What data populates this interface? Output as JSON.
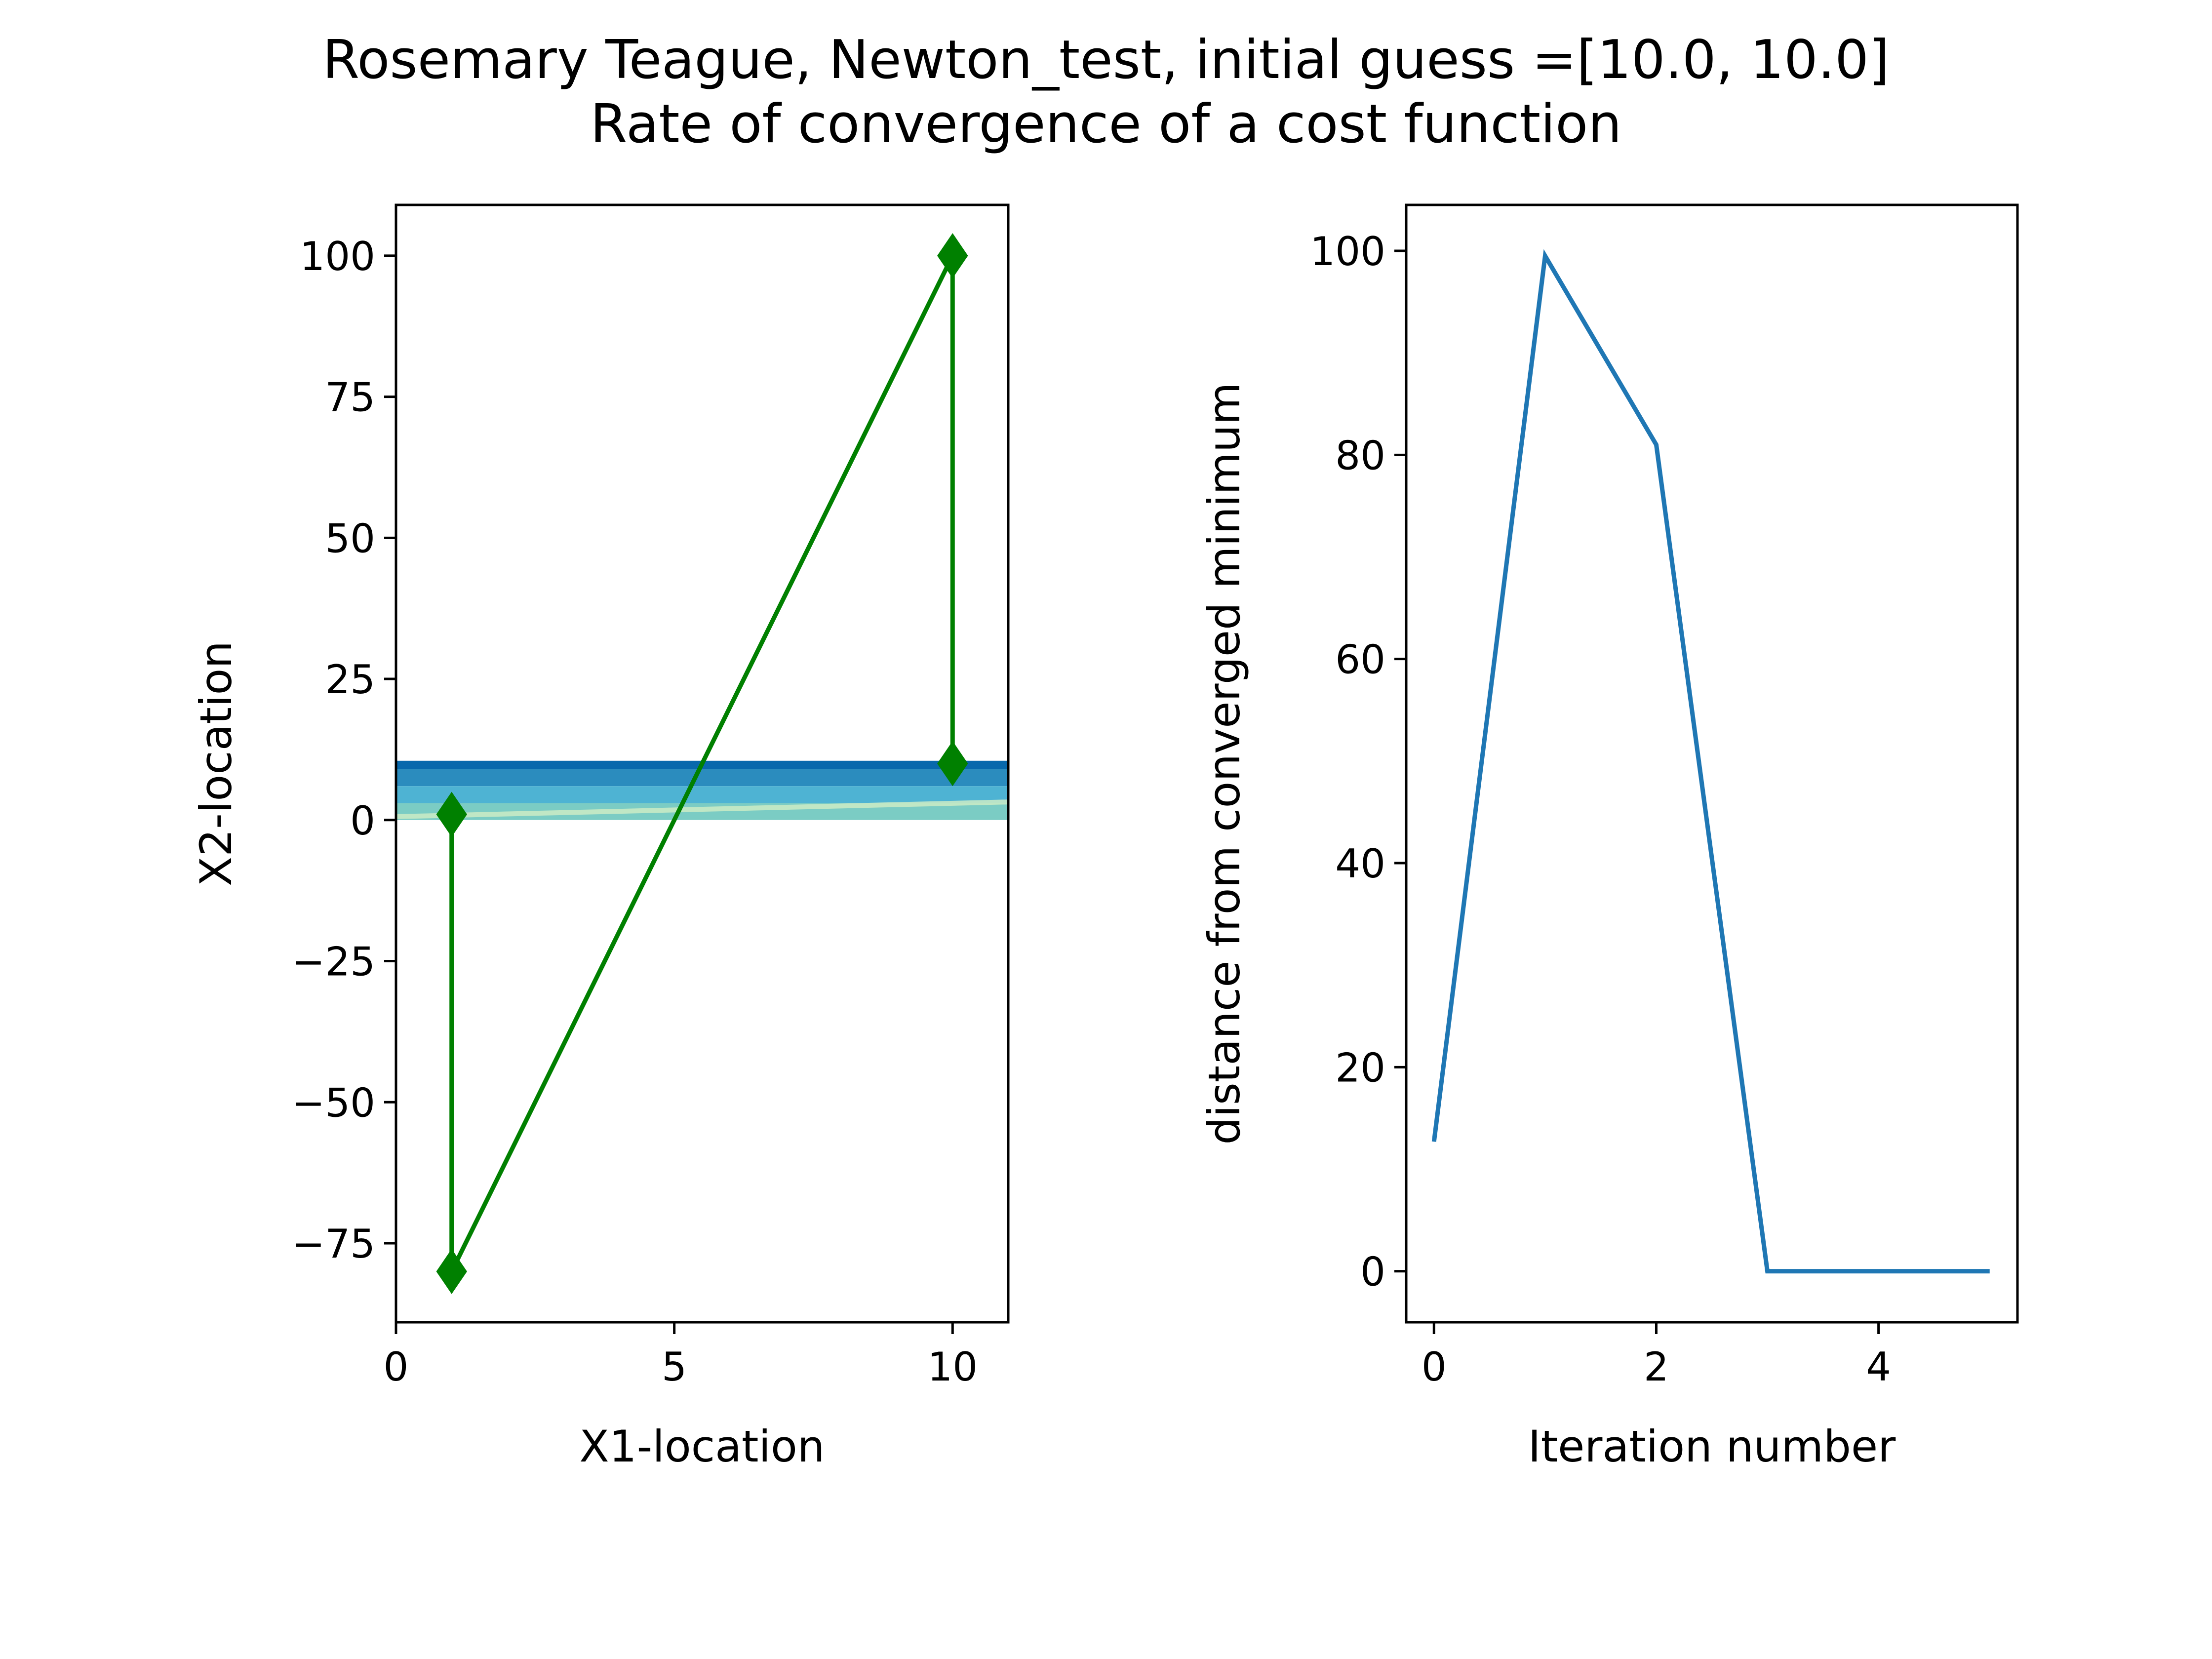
{
  "figure": {
    "title_line1": "Rosemary Teague, Newton_test, initial guess =[10.0, 10.0]",
    "title_line2": "Rate of convergence of a cost function"
  },
  "chart_data": [
    {
      "type": "line",
      "xlabel": "X1-location",
      "ylabel": "X2-location",
      "xlim": [
        0,
        11
      ],
      "ylim": [
        -89,
        109
      ],
      "xticks": [
        0,
        5,
        10
      ],
      "xtick_labels": [
        "0",
        "5",
        "10"
      ],
      "yticks": [
        100,
        75,
        50,
        25,
        0,
        -25,
        -50,
        -75
      ],
      "ytick_labels": [
        "100",
        "75",
        "50",
        "25",
        "0",
        "−25",
        "−50",
        "−75"
      ],
      "background_contour": {
        "description": "filled contour bands of the cost function",
        "bands": [
          {
            "y_from": 9,
            "y_to": 10.5,
            "color": "#0868ac"
          },
          {
            "y_from": 6,
            "y_to": 9,
            "color": "#2b8cbe"
          },
          {
            "y_from": 3,
            "y_to": 6,
            "color": "#4eb3d3"
          },
          {
            "y_from": 0,
            "y_to": 3,
            "color": "#7bccc4"
          }
        ]
      },
      "series": [
        {
          "color": "#008000",
          "marker": "diamond",
          "x": [
            10.0,
            10.0,
            1.0,
            1.0
          ],
          "y": [
            10.0,
            100.0,
            -80.0,
            1.0
          ]
        }
      ],
      "grid": false
    },
    {
      "type": "line",
      "xlabel": "Iteration number",
      "ylabel": "distance from converged minimum",
      "xlim": [
        -0.25,
        5.25
      ],
      "ylim": [
        -5,
        104.5
      ],
      "xticks": [
        0,
        2,
        4
      ],
      "xtick_labels": [
        "0",
        "2",
        "4"
      ],
      "yticks": [
        0,
        20,
        40,
        60,
        80,
        100
      ],
      "ytick_labels": [
        "0",
        "20",
        "40",
        "60",
        "80",
        "100"
      ],
      "series": [
        {
          "color": "#1f77b4",
          "x": [
            0,
            1,
            2,
            3,
            4,
            5
          ],
          "y": [
            12.7,
            99.5,
            81.0,
            0.0,
            0.0,
            0.0
          ]
        }
      ],
      "grid": false
    }
  ]
}
